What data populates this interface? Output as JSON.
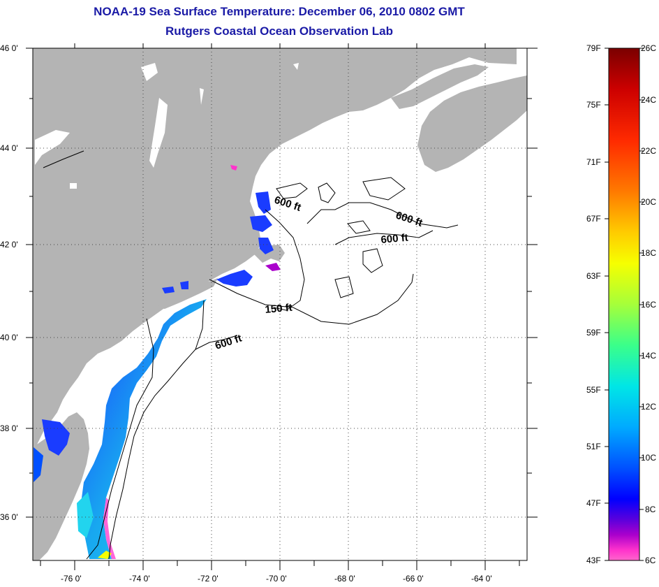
{
  "header": {
    "title": "NOAA-19 Sea Surface Temperature:  December 06, 2010 0802 GMT",
    "subtitle": "Rutgers Coastal Ocean Observation Lab"
  },
  "map": {
    "lat_labels": [
      "46 0'",
      "44 0'",
      "42 0'",
      "40 0'",
      "38 0'",
      "36 0'"
    ],
    "lon_labels": [
      "-76 0'",
      "-74 0'",
      "-72 0'",
      "-70 0'",
      "-68 0'",
      "-66 0'",
      "-64 0'"
    ],
    "contour_labels": [
      "600 ft",
      "600 ft",
      "600 ft",
      "150 ft",
      "600 ft"
    ],
    "colors": {
      "land": "#b4b4b4",
      "ocean": "#ffffff",
      "grid": "#444444"
    }
  },
  "colorbar": {
    "fahrenheit_labels": [
      "79F",
      "75F",
      "71F",
      "67F",
      "63F",
      "59F",
      "55F",
      "51F",
      "47F",
      "43F"
    ],
    "celsius_labels": [
      "26C",
      "24C",
      "22C",
      "20C",
      "18C",
      "16C",
      "14C",
      "12C",
      "10C",
      "8C",
      "6C"
    ],
    "gradient_colors": [
      "#7a0000",
      "#cc0000",
      "#ff2a00",
      "#ff7a00",
      "#ffcc00",
      "#f6ff00",
      "#a6ff3a",
      "#3aff8a",
      "#00e6e6",
      "#00aaff",
      "#0050ff",
      "#0000ff",
      "#5a00dd",
      "#aa00cc",
      "#ff33cc",
      "#ff66cc"
    ]
  }
}
